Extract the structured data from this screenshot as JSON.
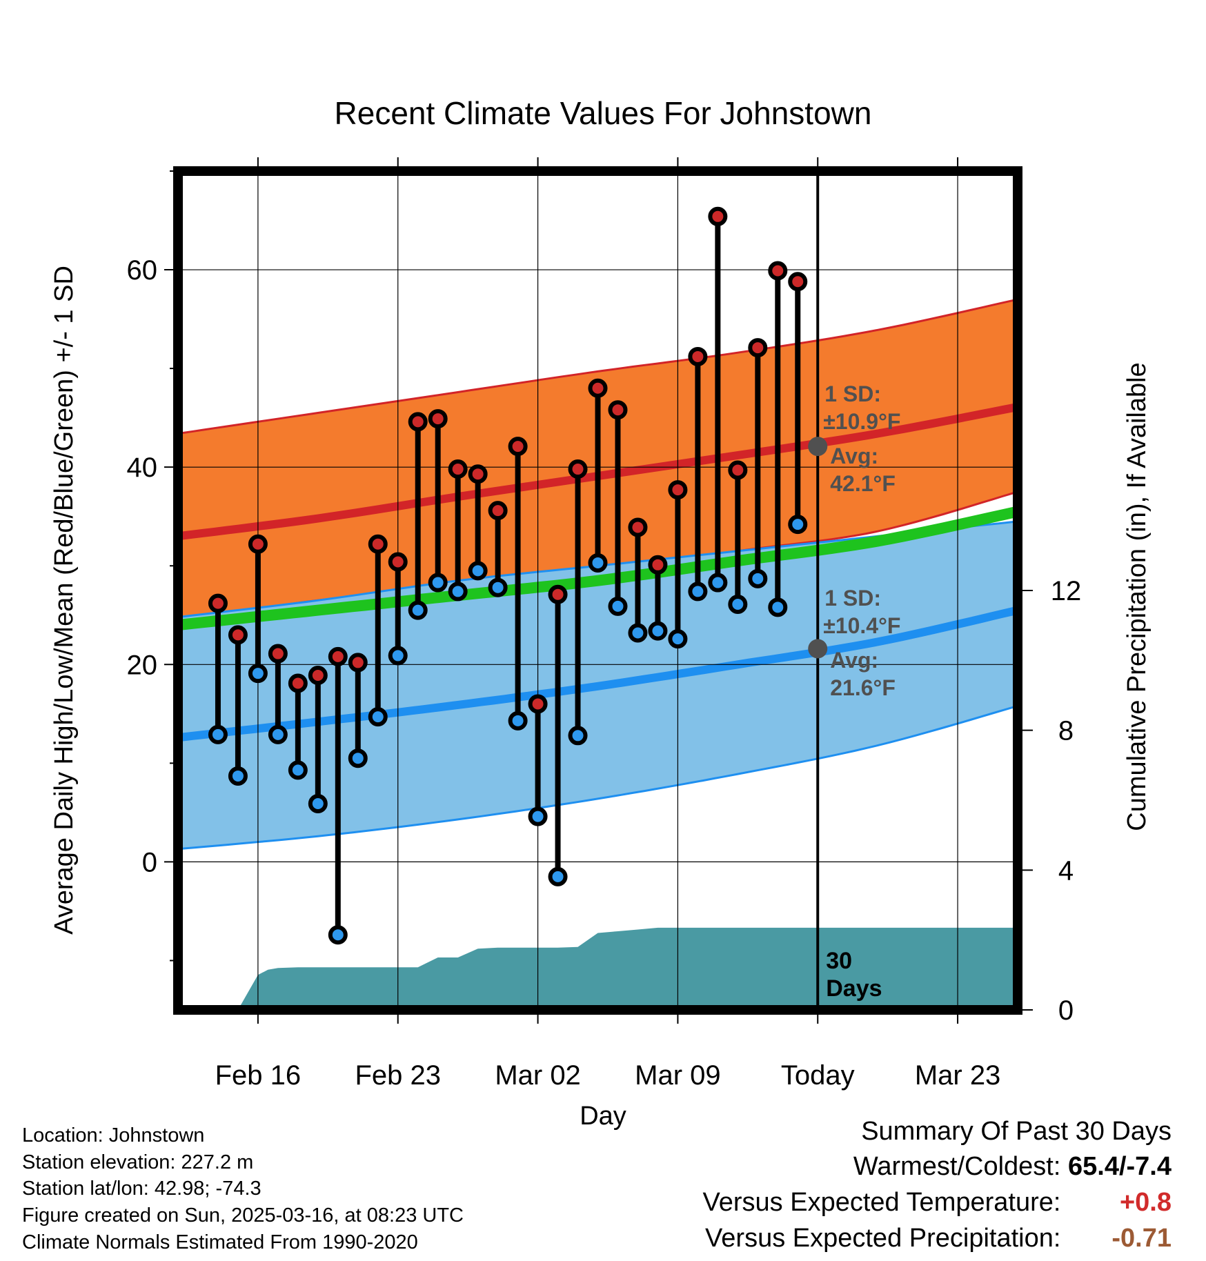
{
  "chart_data": {
    "type": "line",
    "title": "Recent Climate Values For Johnstown",
    "xlabel": "Day",
    "ylabel": "Average Daily High/Low/Mean (Red/Blue/Green) +/- 1 SD",
    "ylabel_right": "Cumulative Precipitation (in), If Available",
    "ylim": [
      -15,
      70
    ],
    "y2lim": [
      0,
      24
    ],
    "xlim": [
      "Feb 12",
      "Mar 26"
    ],
    "grid": true,
    "x_ticks": [
      {
        "date": "Feb 16",
        "label": "Feb 16"
      },
      {
        "date": "Feb 23",
        "label": "Feb 23"
      },
      {
        "date": "Mar 02",
        "label": "Mar 02"
      },
      {
        "date": "Mar 09",
        "label": "Mar 09"
      },
      {
        "date": "Mar 16",
        "label": "Today"
      },
      {
        "date": "Mar 23",
        "label": "Mar 23"
      }
    ],
    "y_ticks": [
      0,
      20,
      40,
      60
    ],
    "y2_ticks": [
      0,
      4,
      8,
      12
    ],
    "today": "Mar 16",
    "normals": {
      "dates": [
        "Feb 12",
        "Feb 19",
        "Feb 26",
        "Mar 05",
        "Mar 12",
        "Mar 19",
        "Mar 26"
      ],
      "high_mean": [
        33,
        34.8,
        37,
        39.1,
        41.2,
        43.4,
        46.1
      ],
      "high_upper": [
        43.4,
        45.5,
        47.6,
        49.7,
        51.6,
        53.9,
        57
      ],
      "high_lower": [
        24.5,
        26.5,
        28,
        29.5,
        31.5,
        33.5,
        37.5
      ],
      "mean": [
        24,
        25.5,
        27,
        28.5,
        30.5,
        32.5,
        35.5
      ],
      "low_mean": [
        12.6,
        14.2,
        15.9,
        17.8,
        20,
        22.3,
        25.5
      ],
      "low_upper": [
        24.8,
        26.5,
        28.5,
        30,
        31.5,
        33,
        34.5
      ],
      "low_lower": [
        1.3,
        2.6,
        4.3,
        6.4,
        8.9,
        11.8,
        15.8
      ]
    },
    "annotations": [
      {
        "lines": [
          "1 SD:",
          "±10.9°F",
          "Avg:",
          "42.1°F"
        ],
        "series": "High",
        "avg": 42.1
      },
      {
        "lines": [
          "1 SD:",
          "±10.4°F",
          "Avg:",
          "21.6°F"
        ],
        "series": "Low",
        "avg": 21.6
      }
    ],
    "precip_label": [
      "30",
      "Days"
    ],
    "observed": {
      "dates": [
        "Feb 14",
        "Feb 15",
        "Feb 16",
        "Feb 17",
        "Feb 18",
        "Feb 19",
        "Feb 20",
        "Feb 21",
        "Feb 22",
        "Feb 23",
        "Feb 24",
        "Feb 25",
        "Feb 26",
        "Feb 27",
        "Feb 28",
        "Mar 01",
        "Mar 02",
        "Mar 03",
        "Mar 04",
        "Mar 05",
        "Mar 06",
        "Mar 07",
        "Mar 08",
        "Mar 09",
        "Mar 10",
        "Mar 11",
        "Mar 12",
        "Mar 13",
        "Mar 14",
        "Mar 15"
      ],
      "high": [
        26.2,
        23,
        32.2,
        21.1,
        18.1,
        18.9,
        20.8,
        20.2,
        32.2,
        30.4,
        44.6,
        44.9,
        39.8,
        39.3,
        35.6,
        42.1,
        16,
        27.1,
        39.8,
        48,
        45.8,
        33.9,
        30.1,
        37.7,
        51.2,
        65.4,
        39.7,
        52.1,
        59.9,
        58.8
      ],
      "low": [
        12.9,
        8.7,
        19.1,
        12.9,
        9.3,
        5.9,
        -7.4,
        10.5,
        14.7,
        20.9,
        25.5,
        28.3,
        27.4,
        29.5,
        27.8,
        14.3,
        4.6,
        -1.5,
        12.8,
        30.3,
        25.9,
        23.2,
        23.4,
        22.6,
        27.4,
        28.3,
        26.1,
        28.7,
        25.8,
        34.2
      ]
    },
    "precip": {
      "dates": [
        "Feb 15",
        "Feb 16",
        "Feb 16.5",
        "Feb 17",
        "Feb 18",
        "Feb 19",
        "Feb 20",
        "Feb 21",
        "Feb 22",
        "Feb 23",
        "Feb 24",
        "Feb 25",
        "Feb 26",
        "Feb 27",
        "Feb 28",
        "Mar 01",
        "Mar 02",
        "Mar 03",
        "Mar 04",
        "Mar 05",
        "Mar 06",
        "Mar 07",
        "Mar 08",
        "Mar 09",
        "Mar 16",
        "Mar 26"
      ],
      "values": [
        0,
        1.0,
        1.15,
        1.2,
        1.22,
        1.22,
        1.22,
        1.22,
        1.22,
        1.22,
        1.22,
        1.5,
        1.5,
        1.75,
        1.78,
        1.78,
        1.78,
        1.78,
        1.8,
        2.2,
        2.25,
        2.3,
        2.35,
        2.35,
        2.35,
        2.35
      ]
    }
  },
  "info": {
    "location": "Location: Johnstown",
    "elevation": "Station elevation: 227.2 m",
    "latlon": "Station lat/lon: 42.98; -74.3",
    "created": "Figure created on Sun, 2025-03-16, at 08:23 UTC",
    "normals": "Climate Normals Estimated From 1990-2020"
  },
  "summary": {
    "title": "Summary Of Past 30 Days",
    "warm_cold_label": "Warmest/Coldest:",
    "warm_cold_value": "65.4/-7.4",
    "temp_label": "Versus Expected Temperature:",
    "temp_value": "+0.8",
    "precip_label": "Versus Expected Precipitation:",
    "precip_value": "-0.71",
    "temp_color": "#d12b2b",
    "precip_color": "#9c5a34"
  },
  "colors": {
    "high_band": "#f47b2d",
    "high_line": "#d22428",
    "low_band": "#82c1e8",
    "low_line": "#1e8ff0",
    "mean_line": "#1ec31e",
    "precip_fill": "#4a9aa3",
    "high_dot": "#cc2929",
    "low_dot": "#2e98ee"
  }
}
